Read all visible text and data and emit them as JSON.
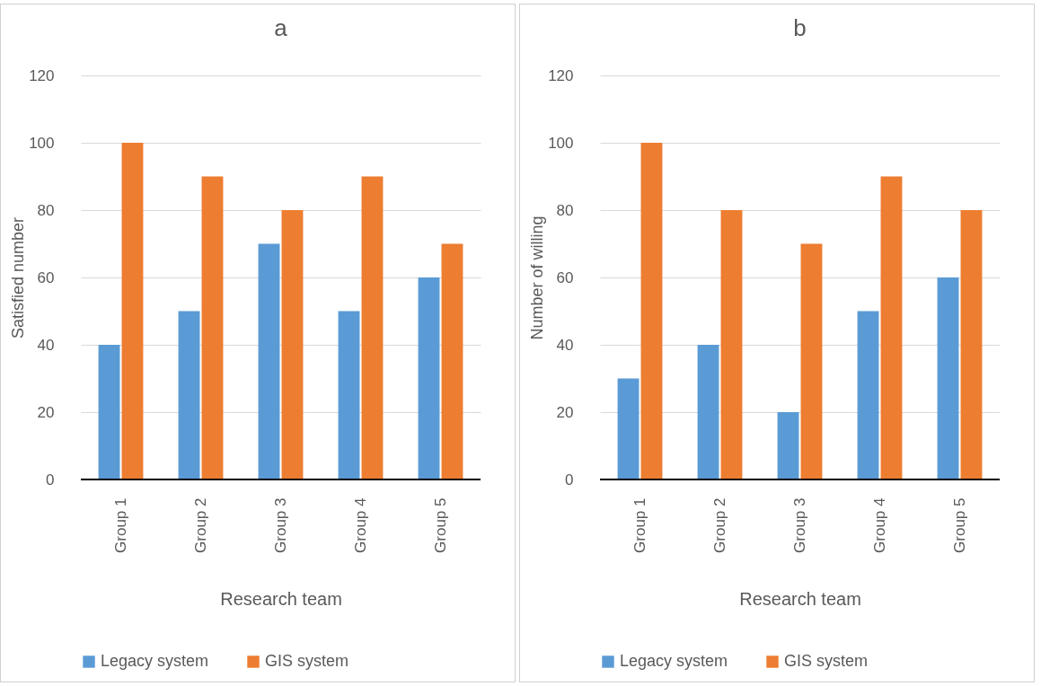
{
  "chart_data": [
    {
      "type": "bar",
      "title": "a",
      "xlabel": "Research team",
      "ylabel": "Satisfied number",
      "categories": [
        "Group 1",
        "Group 2",
        "Group 3",
        "Group 4",
        "Group 5"
      ],
      "series": [
        {
          "name": "Legacy system",
          "color": "#5b9bd5",
          "values": [
            40,
            50,
            70,
            50,
            60
          ]
        },
        {
          "name": "GIS system",
          "color": "#ed7d31",
          "values": [
            100,
            90,
            80,
            90,
            70
          ]
        }
      ],
      "ylim": [
        0,
        120
      ],
      "yticks": [
        0,
        20,
        40,
        60,
        80,
        100,
        120
      ],
      "grid": "y",
      "legend": "bottom"
    },
    {
      "type": "bar",
      "title": "b",
      "xlabel": "Research team",
      "ylabel": "Number of willing",
      "categories": [
        "Group 1",
        "Group 2",
        "Group 3",
        "Group 4",
        "Group 5"
      ],
      "series": [
        {
          "name": "Legacy system",
          "color": "#5b9bd5",
          "values": [
            30,
            40,
            20,
            50,
            60
          ]
        },
        {
          "name": "GIS system",
          "color": "#ed7d31",
          "values": [
            100,
            80,
            70,
            90,
            80
          ]
        }
      ],
      "ylim": [
        0,
        120
      ],
      "yticks": [
        0,
        20,
        40,
        60,
        80,
        100,
        120
      ],
      "grid": "y",
      "legend": "bottom"
    }
  ]
}
